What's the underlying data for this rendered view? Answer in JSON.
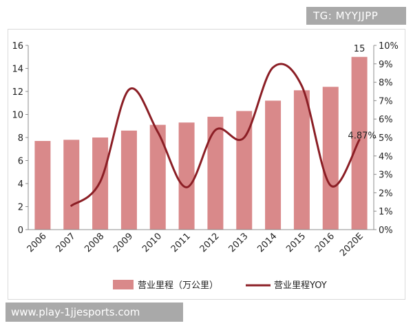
{
  "watermarks": {
    "top": "TG: MYYJJPP",
    "bottom": "www.play-1jjesports.com"
  },
  "chart_data": {
    "type": "bar",
    "categories": [
      "2006",
      "2007",
      "2008",
      "2009",
      "2010",
      "2011",
      "2012",
      "2013",
      "2014",
      "2015",
      "2016",
      "2020E"
    ],
    "series": [
      {
        "name": "营业里程（万公里）",
        "type": "bar",
        "axis": "left",
        "color": "#d9898a",
        "values": [
          7.7,
          7.8,
          8.0,
          8.6,
          9.1,
          9.3,
          9.8,
          10.3,
          11.2,
          12.1,
          12.4,
          15.0
        ]
      },
      {
        "name": "营业里程YOY",
        "type": "line",
        "axis": "right",
        "color": "#8b1e25",
        "values": [
          null,
          1.3,
          2.6,
          7.6,
          null,
          2.3,
          5.4,
          5.0,
          8.8,
          null,
          2.4,
          4.87
        ]
      }
    ],
    "title": "",
    "xlabel": "",
    "ylabel": "",
    "ylim": [
      0,
      16
    ],
    "y_ticks": [
      "0",
      "2",
      "4",
      "6",
      "8",
      "10",
      "12",
      "14",
      "16"
    ],
    "y2lim": [
      0,
      10
    ],
    "y2_ticks": [
      "0%",
      "1%",
      "2%",
      "3%",
      "4%",
      "5%",
      "6%",
      "7%",
      "8%",
      "9%",
      "10%"
    ],
    "annotations": {
      "last_bar_value": "15",
      "last_yoy_value": "4.87%"
    },
    "legend_placement": "bottom",
    "grid": false
  }
}
